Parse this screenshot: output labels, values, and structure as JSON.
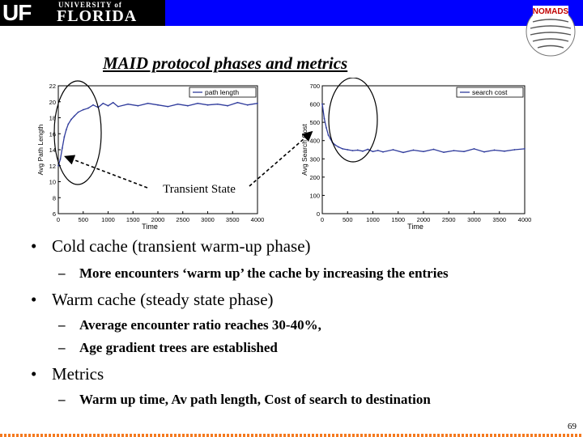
{
  "header": {
    "logo_uf": "UF",
    "logo_university": "UNIVERSITY of",
    "logo_florida": "FLORIDA",
    "badge_text": "NOMADS",
    "banner_color": "#0000ff"
  },
  "title": "MAID protocol phases and metrics",
  "annotation": "Transient State",
  "chart_data": [
    {
      "type": "line",
      "xlabel": "Time",
      "ylabel": "Avg Path Length",
      "xlim": [
        0,
        4000
      ],
      "ylim": [
        6,
        22
      ],
      "xticks": [
        0,
        500,
        1000,
        1500,
        2000,
        2500,
        3000,
        3500,
        4000
      ],
      "yticks": [
        6,
        8,
        10,
        12,
        14,
        16,
        18,
        20,
        22
      ],
      "legend_position": "top-right",
      "series": [
        {
          "name": "path length",
          "color": "#2f3b9c",
          "x": [
            0,
            40,
            80,
            120,
            160,
            200,
            260,
            320,
            400,
            500,
            600,
            700,
            800,
            900,
            1000,
            1100,
            1200,
            1400,
            1600,
            1800,
            2000,
            2200,
            2400,
            2600,
            2800,
            3000,
            3200,
            3400,
            3600,
            3800,
            4000
          ],
          "values": [
            12.0,
            12.8,
            14.2,
            15.6,
            16.5,
            17.2,
            17.8,
            18.2,
            18.7,
            19.0,
            19.2,
            19.6,
            19.3,
            19.8,
            19.5,
            19.9,
            19.4,
            19.7,
            19.5,
            19.8,
            19.6,
            19.4,
            19.7,
            19.5,
            19.8,
            19.6,
            19.7,
            19.5,
            19.9,
            19.6,
            19.8
          ]
        }
      ]
    },
    {
      "type": "line",
      "xlabel": "Time",
      "ylabel": "Avg Search Cost",
      "xlim": [
        0,
        4000
      ],
      "ylim": [
        0,
        700
      ],
      "xticks": [
        0,
        500,
        1000,
        1500,
        2000,
        2500,
        3000,
        3500,
        4000
      ],
      "yticks": [
        0,
        100,
        200,
        300,
        400,
        500,
        600,
        700
      ],
      "legend_position": "top-right",
      "series": [
        {
          "name": "search cost",
          "color": "#2f3b9c",
          "x": [
            0,
            40,
            80,
            120,
            160,
            200,
            260,
            320,
            400,
            500,
            600,
            700,
            800,
            900,
            1000,
            1100,
            1200,
            1400,
            1600,
            1800,
            2000,
            2200,
            2400,
            2600,
            2800,
            3000,
            3200,
            3400,
            3600,
            3800,
            4000
          ],
          "values": [
            600,
            520,
            470,
            430,
            410,
            390,
            375,
            365,
            355,
            350,
            345,
            348,
            342,
            352,
            340,
            346,
            338,
            350,
            335,
            348,
            340,
            352,
            336,
            345,
            340,
            355,
            338,
            348,
            342,
            350,
            355
          ]
        }
      ]
    }
  ],
  "bullets": [
    {
      "text": "Cold cache (transient warm-up phase)",
      "subs": [
        "More encounters ‘warm up’ the cache by increasing the entries"
      ]
    },
    {
      "text": "Warm cache (steady state phase)",
      "subs": [
        "Average encounter ratio reaches 30-40%,",
        "Age gradient trees are established"
      ]
    },
    {
      "text": "Metrics",
      "subs": [
        "Warm up time, Av path length, Cost of search to destination"
      ]
    }
  ],
  "page_number": "69"
}
